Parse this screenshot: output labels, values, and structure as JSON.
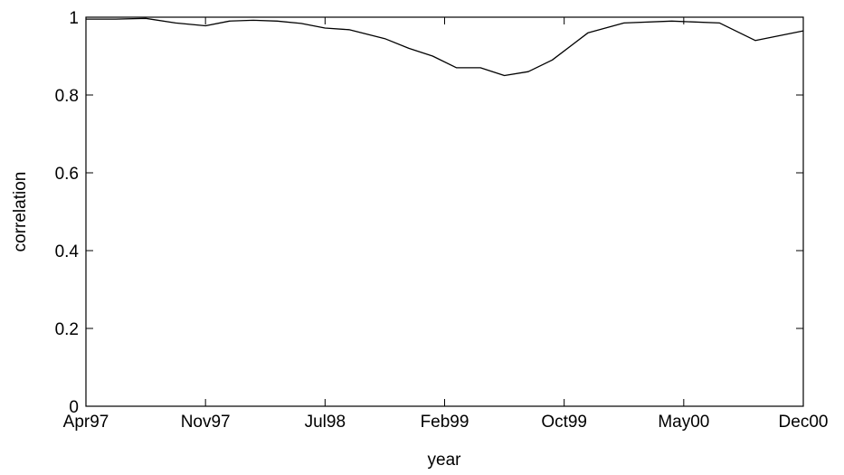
{
  "chart_data": {
    "type": "line",
    "title": "",
    "xlabel": "year",
    "ylabel": "correlation",
    "x_ticks": [
      "Apr97",
      "Nov97",
      "Jul98",
      "Feb99",
      "Oct99",
      "May00",
      "Dec00"
    ],
    "y_ticks": [
      "0",
      "0.2",
      "0.4",
      "0.6",
      "0.8",
      "1"
    ],
    "ylim": [
      0,
      1
    ],
    "xlim": [
      0,
      6
    ],
    "grid": false,
    "line_color": "#000000",
    "series": [
      {
        "x": [
          0,
          0.25,
          0.5,
          0.75,
          1.0,
          1.2,
          1.4,
          1.6,
          1.8,
          2.0,
          2.2,
          2.5,
          2.7,
          2.9,
          3.1,
          3.3,
          3.5,
          3.7,
          3.9,
          4.2,
          4.5,
          4.9,
          5.3,
          5.6,
          6.0
        ],
        "y": [
          0.995,
          0.995,
          0.997,
          0.985,
          0.978,
          0.99,
          0.992,
          0.99,
          0.984,
          0.972,
          0.968,
          0.945,
          0.92,
          0.9,
          0.87,
          0.87,
          0.85,
          0.86,
          0.89,
          0.96,
          0.985,
          0.99,
          0.985,
          0.94,
          0.965
        ]
      }
    ]
  }
}
